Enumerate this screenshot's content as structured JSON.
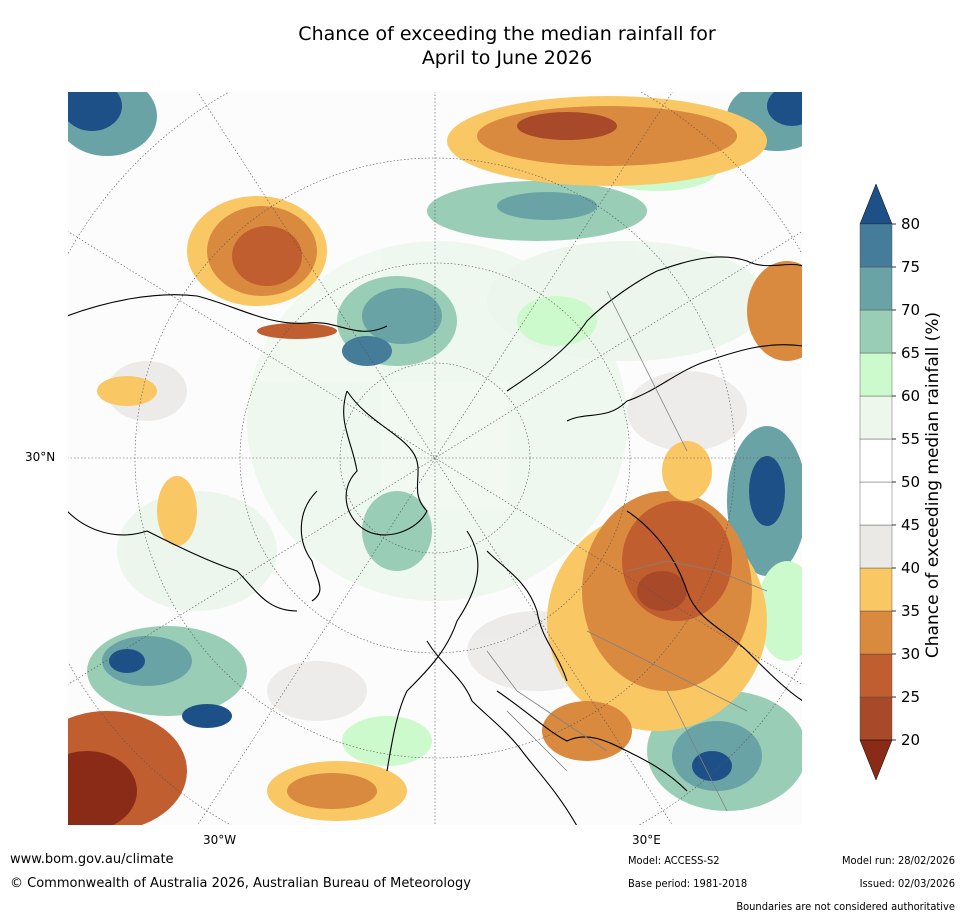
{
  "title": {
    "line1": "Chance of exceeding the median rainfall for",
    "line2": "April to June 2026"
  },
  "map": {
    "projection": "north polar stereographic",
    "region": "Northern Hemisphere (Arctic, Europe, North Atlantic)",
    "lat_label": "30°N",
    "lon_labels": [
      "30°W",
      "30°E"
    ]
  },
  "colorbar": {
    "label": "Chance of exceeding median rainfall (%)",
    "ticks": [
      "20",
      "25",
      "30",
      "35",
      "40",
      "45",
      "50",
      "55",
      "60",
      "65",
      "70",
      "75",
      "80"
    ],
    "bin_colors": [
      "#a84a2a",
      "#c05e30",
      "#d98a3f",
      "#f9c864",
      "#ebe9e6",
      "#ffffff",
      "#ffffff",
      "#edf7ec",
      "#ccfacc",
      "#99cdb6",
      "#6aa3a6",
      "#447c99"
    ],
    "under_color": "#8a2b18",
    "over_color": "#1e5088"
  },
  "footer": {
    "url": "www.bom.gov.au/climate",
    "copyright": "© Commonwealth of Australia 2026, Australian Bureau of Meteorology",
    "model": "Model: ACCESS-S2",
    "base_period": "Base period: 1981-2018",
    "model_run": "Model run: 28/02/2026",
    "issued": "Issued: 02/03/2026",
    "disclaimer": "Boundaries are not considered authoritative"
  },
  "colors": {
    "land_background": "#ffffff",
    "coastline": "#000000",
    "border": "#808080"
  }
}
